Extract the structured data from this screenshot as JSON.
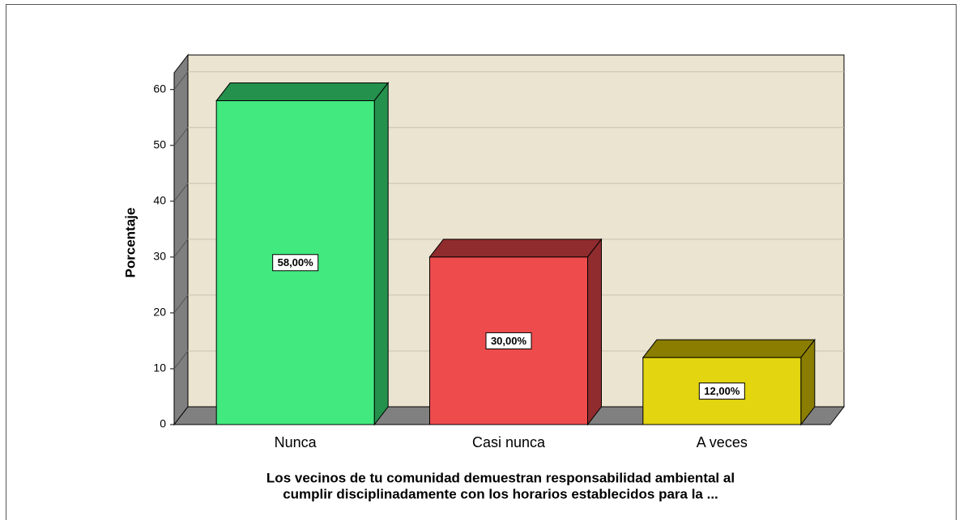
{
  "chart_data": {
    "type": "bar3d",
    "ylabel": "Porcentaje",
    "xlabel": [
      "Los vecinos de tu comunidad demuestran responsabilidad ambiental al",
      "cumplir disciplinadamente con los horarios establecidos para la ..."
    ],
    "categories": [
      "Nunca",
      "Casi nunca",
      "A veces"
    ],
    "values": [
      58,
      30,
      12
    ],
    "value_labels": [
      "58,00%",
      "30,00%",
      "12,00%"
    ],
    "colors": [
      "#41e97f",
      "#ee4b4d",
      "#e3d510"
    ],
    "side_colors": [
      "#24914c",
      "#902b2e",
      "#8a7d00"
    ],
    "ylim": [
      0,
      63
    ],
    "yticks": [
      0,
      10,
      20,
      30,
      40,
      50,
      60
    ],
    "grid": true
  }
}
